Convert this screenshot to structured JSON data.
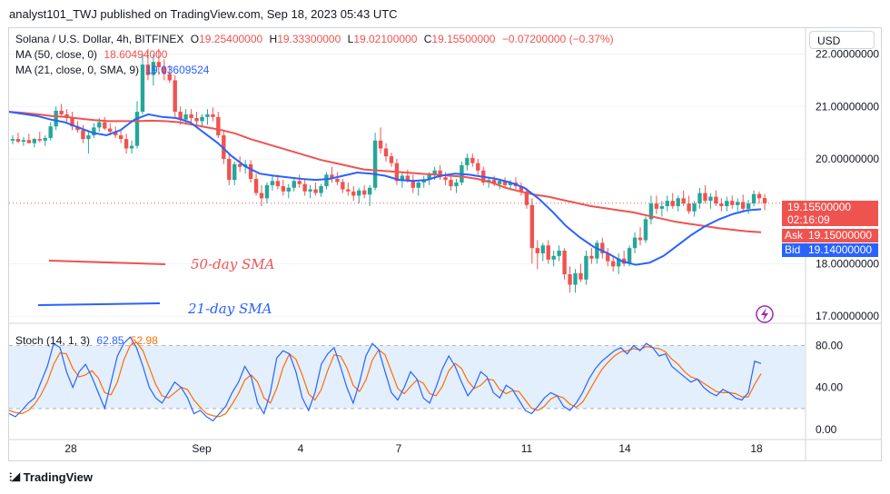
{
  "header": {
    "title": "analyst101_TWJ published on TradingView.com, Sep 18, 2023 05:43 UTC"
  },
  "legend": {
    "symbol": "Solana / U.S. Dollar, 4h, BITFINEX",
    "o_label": "O",
    "o": "19.25400000",
    "h_label": "H",
    "h": "19.33300000",
    "l_label": "L",
    "l": "19.02100000",
    "c_label": "C",
    "c": "19.15500000",
    "change": "−0.07200000 (−0.37%)",
    "ma50_label": "MA (50, close, 0)",
    "ma50_value": "18.60494000",
    "ma21_label": "MA (21, close, 0, SMA, 9)",
    "ma21_value": "19.03609524",
    "stoch_label": "Stoch (14, 1, 3)",
    "stoch_k": "62.85",
    "stoch_d": "52.98"
  },
  "currency_button": "USD",
  "price_tags": {
    "last": "19.15500000",
    "countdown": "02:16:09",
    "ask_label": "Ask",
    "ask": "19.15000000",
    "bid_label": "Bid",
    "bid": "19.14000000"
  },
  "annotations": {
    "sma50": "50-day SMA",
    "sma21": "21-day SMA"
  },
  "footer": {
    "brand": "TradingView"
  },
  "colors": {
    "up": "#26a69a",
    "down": "#ef5350",
    "ma50": "#ef5350",
    "ma21": "#2962ff",
    "stoch_k": "#2962ff",
    "stoch_d": "#ff6d00",
    "band": "#e3effd"
  },
  "chart_data": {
    "type": "candlestick",
    "price_axis": {
      "ticks": [
        "22.00000000",
        "21.00000000",
        "20.00000000",
        "18.00000000",
        "17.00000000"
      ],
      "tick_values": [
        22,
        21,
        20,
        18,
        17
      ],
      "range": [
        16.9,
        22.2
      ]
    },
    "time_axis": {
      "ticks": [
        "28",
        "Sep",
        "4",
        "7",
        "11",
        "14",
        "18"
      ]
    },
    "ohlc": [
      [
        20.35,
        20.45,
        20.28,
        20.38
      ],
      [
        20.38,
        20.5,
        20.3,
        20.33
      ],
      [
        20.33,
        20.42,
        20.25,
        20.36
      ],
      [
        20.36,
        20.48,
        20.3,
        20.3
      ],
      [
        20.3,
        20.4,
        20.22,
        20.38
      ],
      [
        20.38,
        20.52,
        20.32,
        20.35
      ],
      [
        20.35,
        20.45,
        20.25,
        20.4
      ],
      [
        20.4,
        20.7,
        20.35,
        20.62
      ],
      [
        20.62,
        21.0,
        20.55,
        20.92
      ],
      [
        20.92,
        21.05,
        20.8,
        20.85
      ],
      [
        20.85,
        20.95,
        20.7,
        20.78
      ],
      [
        20.78,
        20.9,
        20.55,
        20.62
      ],
      [
        20.62,
        20.72,
        20.5,
        20.55
      ],
      [
        20.55,
        20.65,
        20.3,
        20.38
      ],
      [
        20.38,
        20.52,
        20.1,
        20.45
      ],
      [
        20.45,
        20.68,
        20.4,
        20.6
      ],
      [
        20.6,
        20.78,
        20.52,
        20.7
      ],
      [
        20.7,
        20.8,
        20.55,
        20.58
      ],
      [
        20.58,
        20.68,
        20.45,
        20.52
      ],
      [
        20.52,
        20.62,
        20.4,
        20.45
      ],
      [
        20.45,
        20.55,
        20.3,
        20.38
      ],
      [
        20.38,
        20.48,
        20.1,
        20.2
      ],
      [
        20.2,
        20.35,
        20.1,
        20.25
      ],
      [
        20.25,
        21.1,
        20.2,
        20.9
      ],
      [
        20.9,
        22.0,
        20.85,
        21.8
      ],
      [
        21.8,
        22.1,
        21.5,
        21.6
      ],
      [
        21.6,
        22.0,
        21.4,
        21.85
      ],
      [
        21.85,
        22.1,
        21.6,
        21.75
      ],
      [
        21.75,
        21.9,
        21.5,
        21.62
      ],
      [
        21.62,
        21.78,
        21.45,
        21.5
      ],
      [
        21.5,
        21.6,
        20.8,
        20.9
      ],
      [
        20.9,
        21.0,
        20.65,
        20.75
      ],
      [
        20.75,
        20.95,
        20.65,
        20.85
      ],
      [
        20.85,
        20.95,
        20.7,
        20.78
      ],
      [
        20.78,
        20.9,
        20.65,
        20.72
      ],
      [
        20.72,
        20.85,
        20.6,
        20.8
      ],
      [
        20.8,
        20.95,
        20.65,
        20.85
      ],
      [
        20.85,
        20.98,
        20.72,
        20.8
      ],
      [
        20.8,
        20.9,
        20.4,
        20.45
      ],
      [
        20.45,
        20.55,
        19.9,
        20.0
      ],
      [
        20.0,
        20.1,
        19.5,
        19.6
      ],
      [
        19.6,
        19.95,
        19.5,
        19.9
      ],
      [
        19.9,
        20.05,
        19.75,
        19.85
      ],
      [
        19.85,
        19.98,
        19.72,
        19.9
      ],
      [
        19.9,
        19.98,
        19.55,
        19.62
      ],
      [
        19.62,
        19.72,
        19.3,
        19.35
      ],
      [
        19.35,
        19.5,
        19.1,
        19.25
      ],
      [
        19.25,
        19.55,
        19.15,
        19.5
      ],
      [
        19.5,
        19.68,
        19.4,
        19.58
      ],
      [
        19.58,
        19.7,
        19.42,
        19.48
      ],
      [
        19.48,
        19.6,
        19.3,
        19.38
      ],
      [
        19.38,
        19.52,
        19.25,
        19.45
      ],
      [
        19.45,
        19.65,
        19.38,
        19.58
      ],
      [
        19.58,
        19.7,
        19.45,
        19.52
      ],
      [
        19.52,
        19.6,
        19.3,
        19.38
      ],
      [
        19.38,
        19.5,
        19.25,
        19.42
      ],
      [
        19.42,
        19.55,
        19.3,
        19.35
      ],
      [
        19.35,
        19.52,
        19.28,
        19.48
      ],
      [
        19.48,
        19.75,
        19.42,
        19.7
      ],
      [
        19.7,
        19.85,
        19.55,
        19.62
      ],
      [
        19.62,
        19.75,
        19.5,
        19.56
      ],
      [
        19.56,
        19.62,
        19.35,
        19.42
      ],
      [
        19.42,
        19.55,
        19.3,
        19.38
      ],
      [
        19.38,
        19.48,
        19.2,
        19.3
      ],
      [
        19.3,
        19.45,
        19.15,
        19.4
      ],
      [
        19.4,
        19.5,
        19.25,
        19.32
      ],
      [
        19.32,
        19.5,
        19.1,
        19.45
      ],
      [
        19.45,
        20.5,
        19.4,
        20.35
      ],
      [
        20.35,
        20.6,
        20.1,
        20.2
      ],
      [
        20.2,
        20.3,
        19.95,
        20.05
      ],
      [
        20.05,
        20.12,
        19.85,
        19.92
      ],
      [
        19.92,
        20.0,
        19.5,
        19.58
      ],
      [
        19.58,
        19.75,
        19.45,
        19.68
      ],
      [
        19.68,
        19.8,
        19.55,
        19.6
      ],
      [
        19.6,
        19.7,
        19.35,
        19.45
      ],
      [
        19.45,
        19.6,
        19.3,
        19.55
      ],
      [
        19.55,
        19.68,
        19.45,
        19.6
      ],
      [
        19.6,
        19.75,
        19.5,
        19.7
      ],
      [
        19.7,
        19.85,
        19.6,
        19.78
      ],
      [
        19.78,
        19.88,
        19.6,
        19.65
      ],
      [
        19.65,
        19.75,
        19.5,
        19.6
      ],
      [
        19.6,
        19.72,
        19.4,
        19.48
      ],
      [
        19.48,
        19.62,
        19.35,
        19.55
      ],
      [
        19.55,
        19.95,
        19.5,
        19.88
      ],
      [
        19.88,
        20.1,
        19.78,
        20.02
      ],
      [
        20.02,
        20.1,
        19.85,
        19.92
      ],
      [
        19.92,
        20.0,
        19.7,
        19.78
      ],
      [
        19.78,
        19.85,
        19.5,
        19.55
      ],
      [
        19.55,
        19.65,
        19.45,
        19.6
      ],
      [
        19.6,
        19.68,
        19.48,
        19.52
      ],
      [
        19.52,
        19.62,
        19.42,
        19.58
      ],
      [
        19.58,
        19.65,
        19.45,
        19.5
      ],
      [
        19.5,
        19.6,
        19.4,
        19.55
      ],
      [
        19.55,
        19.65,
        19.42,
        19.48
      ],
      [
        19.48,
        19.55,
        19.3,
        19.38
      ],
      [
        19.38,
        19.45,
        19.05,
        19.12
      ],
      [
        19.12,
        19.25,
        18.0,
        18.3
      ],
      [
        18.3,
        18.45,
        17.9,
        18.2
      ],
      [
        18.2,
        18.4,
        18.05,
        18.35
      ],
      [
        18.35,
        18.45,
        18.0,
        18.08
      ],
      [
        18.08,
        18.25,
        17.95,
        18.15
      ],
      [
        18.15,
        18.35,
        18.05,
        18.25
      ],
      [
        18.25,
        18.3,
        17.7,
        17.8
      ],
      [
        17.8,
        17.95,
        17.45,
        17.6
      ],
      [
        17.6,
        17.9,
        17.45,
        17.82
      ],
      [
        17.82,
        18.0,
        17.65,
        17.7
      ],
      [
        17.7,
        18.25,
        17.6,
        18.15
      ],
      [
        18.15,
        18.3,
        18.0,
        18.1
      ],
      [
        18.1,
        18.45,
        18.0,
        18.4
      ],
      [
        18.4,
        18.5,
        18.1,
        18.2
      ],
      [
        18.2,
        18.3,
        17.95,
        18.05
      ],
      [
        18.05,
        18.15,
        17.85,
        17.95
      ],
      [
        17.95,
        18.2,
        17.8,
        18.1
      ],
      [
        18.1,
        18.25,
        17.95,
        18.0
      ],
      [
        18.0,
        18.35,
        17.95,
        18.3
      ],
      [
        18.3,
        18.6,
        18.2,
        18.5
      ],
      [
        18.5,
        18.7,
        18.35,
        18.45
      ],
      [
        18.45,
        18.9,
        18.4,
        18.85
      ],
      [
        18.85,
        19.3,
        18.75,
        19.15
      ],
      [
        19.15,
        19.3,
        18.95,
        19.05
      ],
      [
        19.05,
        19.2,
        18.9,
        19.1
      ],
      [
        19.1,
        19.3,
        19.0,
        19.2
      ],
      [
        19.2,
        19.35,
        19.05,
        19.1
      ],
      [
        19.1,
        19.3,
        19.0,
        19.25
      ],
      [
        19.25,
        19.4,
        19.1,
        19.15
      ],
      [
        19.15,
        19.3,
        18.95,
        19.0
      ],
      [
        19.0,
        19.2,
        18.9,
        19.15
      ],
      [
        19.15,
        19.45,
        19.05,
        19.35
      ],
      [
        19.35,
        19.5,
        19.15,
        19.2
      ],
      [
        19.2,
        19.35,
        19.05,
        19.28
      ],
      [
        19.28,
        19.4,
        19.1,
        19.15
      ],
      [
        19.15,
        19.25,
        19.0,
        19.1
      ],
      [
        19.1,
        19.28,
        19.0,
        19.2
      ],
      [
        19.2,
        19.3,
        19.05,
        19.12
      ],
      [
        19.12,
        19.25,
        19.0,
        19.18
      ],
      [
        19.18,
        19.32,
        19.0,
        19.05
      ],
      [
        19.05,
        19.22,
        18.95,
        19.15
      ],
      [
        19.15,
        19.4,
        19.1,
        19.33
      ],
      [
        19.33,
        19.38,
        19.15,
        19.25
      ],
      [
        19.254,
        19.333,
        19.021,
        19.155
      ]
    ],
    "ma50": [
      20.9,
      20.88,
      20.85,
      20.82,
      20.8,
      20.77,
      20.74,
      20.72,
      20.72,
      20.72,
      20.73,
      20.72,
      20.7,
      20.65,
      20.6,
      20.55,
      20.48,
      20.38,
      20.3,
      20.22,
      20.14,
      20.06,
      19.98,
      19.92,
      19.86,
      19.8,
      19.78,
      19.76,
      19.74,
      19.72,
      19.7,
      19.68,
      19.66,
      19.62,
      19.55,
      19.45,
      19.38,
      19.32,
      19.28,
      19.22,
      19.16,
      19.1,
      19.06,
      19.02,
      18.98,
      18.92,
      18.86,
      18.8,
      18.76,
      18.72,
      18.68,
      18.65,
      18.62,
      18.6
    ],
    "ma21": [
      20.9,
      20.86,
      20.82,
      20.75,
      20.7,
      20.6,
      20.5,
      20.45,
      20.55,
      20.75,
      20.85,
      20.8,
      20.78,
      20.7,
      20.5,
      20.3,
      20.05,
      19.85,
      19.72,
      19.68,
      19.65,
      19.62,
      19.6,
      19.62,
      19.68,
      19.74,
      19.72,
      19.68,
      19.6,
      19.58,
      19.6,
      19.68,
      19.72,
      19.7,
      19.66,
      19.62,
      19.55,
      19.45,
      19.25,
      19.0,
      18.72,
      18.5,
      18.32,
      18.2,
      18.05,
      17.98,
      18.02,
      18.15,
      18.35,
      18.55,
      18.72,
      18.85,
      18.95,
      19.02,
      19.04
    ],
    "stoch": {
      "levels": [
        80,
        20
      ],
      "ticks": [
        "80.00",
        "40.00",
        "0.00"
      ],
      "tick_values": [
        80,
        40,
        0
      ],
      "range": [
        -8,
        96
      ],
      "k": [
        15,
        12,
        18,
        25,
        30,
        45,
        60,
        82,
        78,
        55,
        40,
        55,
        62,
        50,
        35,
        20,
        45,
        70,
        82,
        88,
        78,
        60,
        40,
        30,
        25,
        35,
        45,
        40,
        30,
        15,
        18,
        12,
        8,
        15,
        22,
        35,
        45,
        60,
        50,
        25,
        15,
        35,
        68,
        75,
        72,
        55,
        30,
        18,
        35,
        62,
        72,
        78,
        60,
        40,
        25,
        45,
        70,
        82,
        76,
        55,
        35,
        28,
        40,
        55,
        48,
        30,
        25,
        40,
        58,
        70,
        60,
        45,
        32,
        40,
        55,
        50,
        35,
        30,
        42,
        38,
        28,
        18,
        15,
        22,
        30,
        35,
        32,
        22,
        18,
        25,
        35,
        48,
        58,
        65,
        70,
        75,
        78,
        72,
        80,
        75,
        82,
        78,
        70,
        72,
        60,
        55,
        50,
        45,
        48,
        40,
        35,
        32,
        38,
        35,
        30,
        28,
        35,
        65,
        62.85
      ],
      "d": [
        18,
        16,
        15,
        18,
        24,
        33,
        45,
        62,
        73,
        72,
        58,
        50,
        52,
        56,
        49,
        35,
        33,
        45,
        66,
        80,
        83,
        75,
        59,
        43,
        32,
        30,
        35,
        40,
        38,
        28,
        21,
        15,
        13,
        12,
        15,
        24,
        34,
        47,
        52,
        45,
        30,
        25,
        39,
        59,
        72,
        67,
        52,
        34,
        28,
        38,
        56,
        71,
        70,
        59,
        42,
        36,
        47,
        66,
        76,
        71,
        55,
        39,
        34,
        41,
        47,
        44,
        34,
        32,
        41,
        56,
        63,
        58,
        46,
        39,
        42,
        48,
        47,
        38,
        34,
        37,
        36,
        28,
        20,
        18,
        22,
        29,
        32,
        30,
        24,
        21,
        26,
        36,
        47,
        57,
        64,
        70,
        74,
        75,
        77,
        76,
        79,
        78,
        77,
        74,
        67,
        62,
        55,
        50,
        48,
        44,
        40,
        36,
        35,
        35,
        34,
        31,
        31,
        43,
        52.98
      ]
    }
  }
}
